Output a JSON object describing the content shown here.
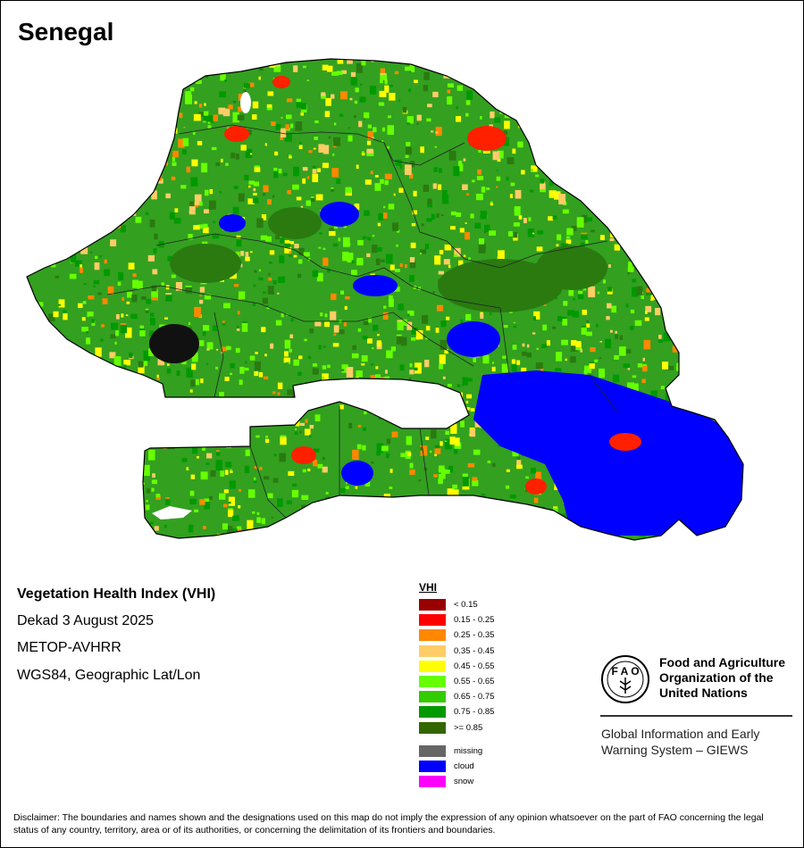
{
  "map": {
    "country": "Senegal",
    "product": "Vegetation Health Index (VHI)",
    "period": "Dekad 3 August 2025",
    "sensor": "METOP-AVHRR",
    "projection": "WGS84, Geographic Lat/Lon",
    "colors": {
      "ocean_background": "#ffffff",
      "border": "#000000",
      "dominant_vegetation": "#33a020",
      "dense_vegetation": "#2a7a10",
      "cloud_south_east": "#0000ff",
      "stressed_areas": "#ff2000"
    }
  },
  "legend": {
    "title": "VHI",
    "classes": [
      {
        "label": "< 0.15",
        "color": "#990000"
      },
      {
        "label": "0.15 - 0.25",
        "color": "#ff0000"
      },
      {
        "label": "0.25 - 0.35",
        "color": "#ff8800"
      },
      {
        "label": "0.35 - 0.45",
        "color": "#ffcc66"
      },
      {
        "label": "0.45 - 0.55",
        "color": "#ffff00"
      },
      {
        "label": "0.55 - 0.65",
        "color": "#66ff00"
      },
      {
        "label": "0.65 - 0.75",
        "color": "#33cc00"
      },
      {
        "label": "0.75 - 0.85",
        "color": "#009900"
      },
      {
        "label": ">= 0.85",
        "color": "#336600"
      }
    ],
    "special": [
      {
        "label": "missing",
        "color": "#666666"
      },
      {
        "label": "cloud",
        "color": "#0000ff"
      },
      {
        "label": "snow",
        "color": "#ff00ff"
      }
    ]
  },
  "branding": {
    "fao_logo_text": "FAO FIAT PANIS",
    "org_line1": "Food and Agriculture",
    "org_line2": "Organization of the",
    "org_line3": "United Nations",
    "system_line1": "Global Information and Early",
    "system_line2": "Warning System – GIEWS"
  },
  "disclaimer": "Disclaimer: The boundaries and names shown and the designations used on this map do not imply the expression of any opinion whatsoever on the part of FAO concerning the legal status of any country, territory, area or of its authorities, or concerning the delimitation of its frontiers and boundaries."
}
